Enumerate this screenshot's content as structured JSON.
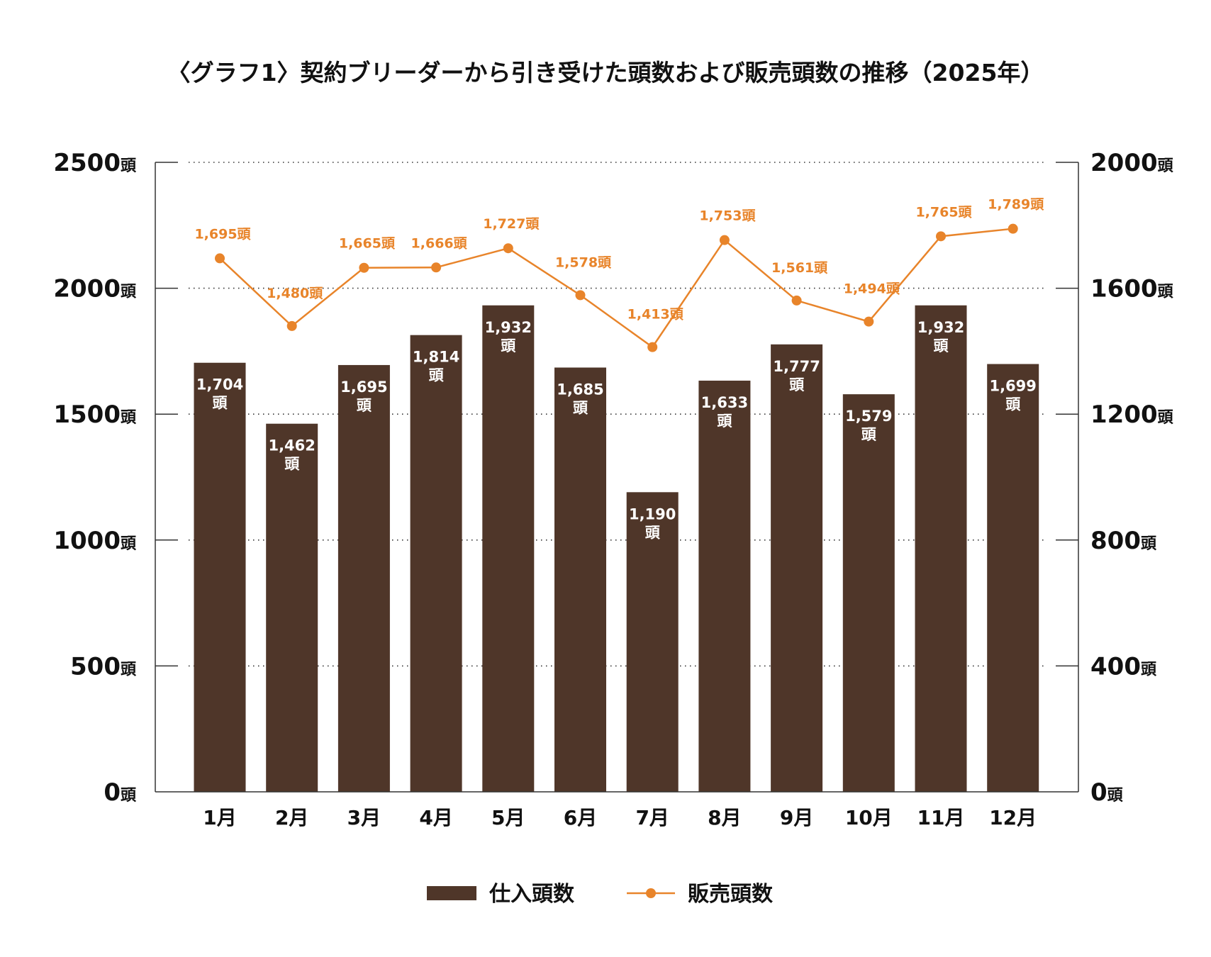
{
  "chart_data": {
    "type": "bar+line",
    "title": "〈グラフ1〉契約ブリーダーから引き受けた頭数および販売頭数の推移（2025年）",
    "categories": [
      "1月",
      "2月",
      "3月",
      "4月",
      "5月",
      "6月",
      "7月",
      "8月",
      "9月",
      "10月",
      "11月",
      "12月"
    ],
    "series": [
      {
        "name": "仕入頭数",
        "type": "bar",
        "axis": "left",
        "color": "#4f3629",
        "values": [
          1704,
          1462,
          1695,
          1814,
          1932,
          1685,
          1190,
          1633,
          1777,
          1579,
          1932,
          1699
        ],
        "labels": [
          "1,704",
          "1,462",
          "1,695",
          "1,814",
          "1,932",
          "1,685",
          "1,190",
          "1,633",
          "1,777",
          "1,579",
          "1,932",
          "1,699"
        ]
      },
      {
        "name": "販売頭数",
        "type": "line",
        "axis": "right",
        "color": "#e8842a",
        "values": [
          1695,
          1480,
          1665,
          1666,
          1727,
          1578,
          1413,
          1753,
          1561,
          1494,
          1765,
          1789
        ],
        "labels": [
          "1,695頭",
          "1,480頭",
          "1,665頭",
          "1,666頭",
          "1,727頭",
          "1,578頭",
          "1,413頭",
          "1,753頭",
          "1,561頭",
          "1,494頭",
          "1,765頭",
          "1,789頭"
        ]
      }
    ],
    "bar_unit": "頭",
    "left_axis": {
      "ylim": [
        0,
        2500
      ],
      "ticks": [
        "0",
        "500",
        "1000",
        "1500",
        "2000",
        "2500"
      ],
      "unit": "頭"
    },
    "right_axis": {
      "ylim": [
        0,
        2000
      ],
      "ticks": [
        "0",
        "400",
        "800",
        "1200",
        "1600",
        "2000"
      ],
      "unit": "頭"
    },
    "grid": true,
    "legend": "bottom"
  }
}
